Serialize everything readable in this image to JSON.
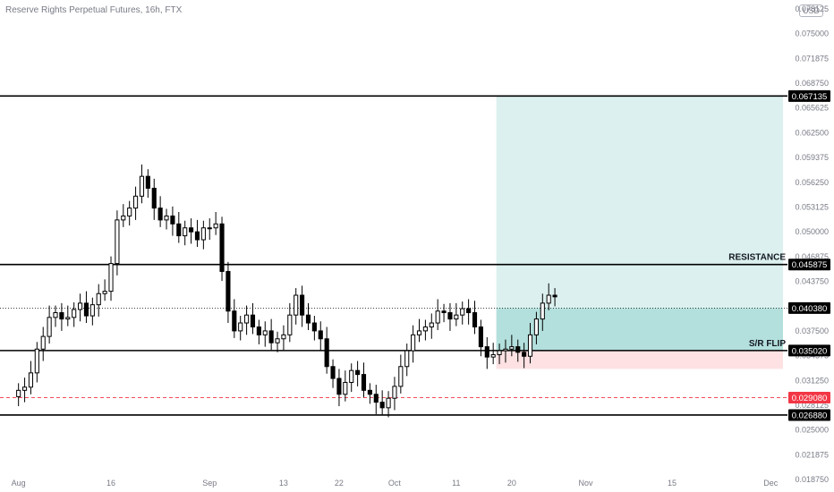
{
  "header": {
    "title": "Reserve Rights Perpetual Futures, 16h, FTX",
    "currency": "USD"
  },
  "chart_data": {
    "type": "candlestick",
    "y_axis_ticks": [
      "0.078125",
      "0.075000",
      "0.071875",
      "0.068750",
      "0.065625",
      "0.062500",
      "0.059375",
      "0.056250",
      "0.053125",
      "0.050000",
      "0.046875",
      "0.043750",
      "0.040625",
      "0.037500",
      "0.034375",
      "0.031250",
      "0.028125",
      "0.025000",
      "0.021875",
      "0.018750"
    ],
    "ylim": [
      0.01875,
      0.078125
    ],
    "x_axis_ticks": [
      {
        "label": "Aug",
        "t": 0
      },
      {
        "label": "16",
        "t": 15
      },
      {
        "label": "Sep",
        "t": 31
      },
      {
        "label": "13",
        "t": 43
      },
      {
        "label": "22",
        "t": 52
      },
      {
        "label": "Oct",
        "t": 61
      },
      {
        "label": "11",
        "t": 71
      },
      {
        "label": "20",
        "t": 80
      },
      {
        "label": "Nov",
        "t": 92
      },
      {
        "label": "15",
        "t": 106
      },
      {
        "label": "Dec",
        "t": 122
      }
    ],
    "x_range": [
      -3,
      124
    ],
    "levels": [
      {
        "name": "target",
        "value": 0.067135,
        "label": "0.067135",
        "style": "solid",
        "color": "#000000"
      },
      {
        "name": "resistance",
        "value": 0.045875,
        "label": "0.045875",
        "style": "solid",
        "color": "#000000",
        "annotation": "RESISTANCE"
      },
      {
        "name": "sr-flip",
        "value": 0.03502,
        "label": "0.035020",
        "style": "solid",
        "color": "#000000",
        "annotation": "S/R FLIP"
      },
      {
        "name": "support",
        "value": 0.02688,
        "label": "0.026880",
        "style": "solid",
        "color": "#000000"
      },
      {
        "name": "last-price",
        "value": 0.04038,
        "label": "0.040380",
        "style": "dotted",
        "color": "#000000"
      },
      {
        "name": "stop",
        "value": 0.02908,
        "label": "0.029080",
        "style": "dashed",
        "color": "#f23645"
      }
    ],
    "position": {
      "t_start": 77.5,
      "t_end": 124,
      "entry": 0.03502,
      "target": 0.067135,
      "stop": 0.0327,
      "fill_target": 0.04038
    },
    "close": [
      0.03,
      0.0304,
      0.0322,
      0.0352,
      0.0368,
      0.0392,
      0.0398,
      0.039,
      0.0392,
      0.0402,
      0.041,
      0.0394,
      0.0408,
      0.0422,
      0.0425,
      0.046,
      0.0515,
      0.052,
      0.053,
      0.0545,
      0.057,
      0.0555,
      0.053,
      0.0515,
      0.052,
      0.051,
      0.0495,
      0.0505,
      0.05,
      0.049,
      0.0505,
      0.0505,
      0.051,
      0.045,
      0.04,
      0.0375,
      0.0385,
      0.0395,
      0.038,
      0.037,
      0.0375,
      0.036,
      0.0365,
      0.037,
      0.0395,
      0.042,
      0.0395,
      0.0385,
      0.0375,
      0.0365,
      0.033,
      0.0315,
      0.0295,
      0.031,
      0.0325,
      0.032,
      0.03,
      0.0295,
      0.0285,
      0.0278,
      0.029,
      0.0305,
      0.033,
      0.035,
      0.037,
      0.0375,
      0.038,
      0.0385,
      0.04,
      0.0398,
      0.039,
      0.0395,
      0.0403,
      0.0398,
      0.038,
      0.0355,
      0.0342,
      0.0345,
      0.035,
      0.0352,
      0.0355,
      0.0348,
      0.0343,
      0.037,
      0.039,
      0.041,
      0.042,
      0.0418
    ]
  }
}
